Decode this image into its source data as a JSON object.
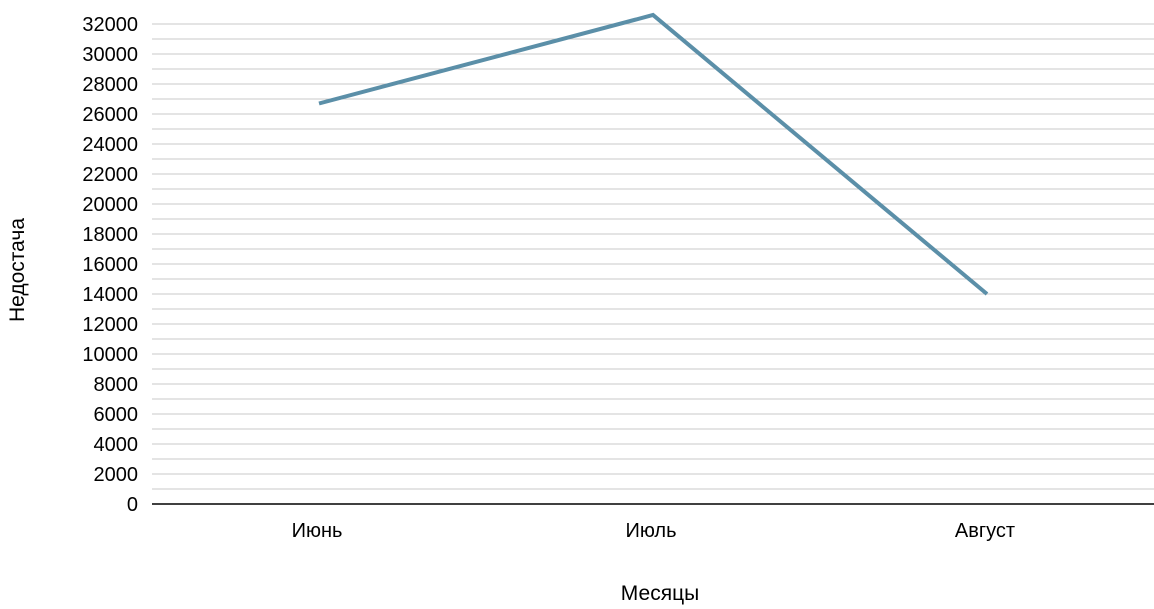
{
  "chart_data": {
    "type": "line",
    "categories": [
      "Июнь",
      "Июль",
      "Август"
    ],
    "series": [
      {
        "values": [
          26700,
          32600,
          14000
        ],
        "color": "#5b8fa8"
      }
    ],
    "xlabel": "Месяцы",
    "ylabel": "Недостача",
    "ylim": [
      0,
      32000
    ],
    "ytick_step": 2000,
    "minor_grid_step": 1000,
    "grid": true,
    "legend": "none",
    "colors": {
      "grid": "#c8c8c8",
      "axis": "#000000"
    }
  }
}
